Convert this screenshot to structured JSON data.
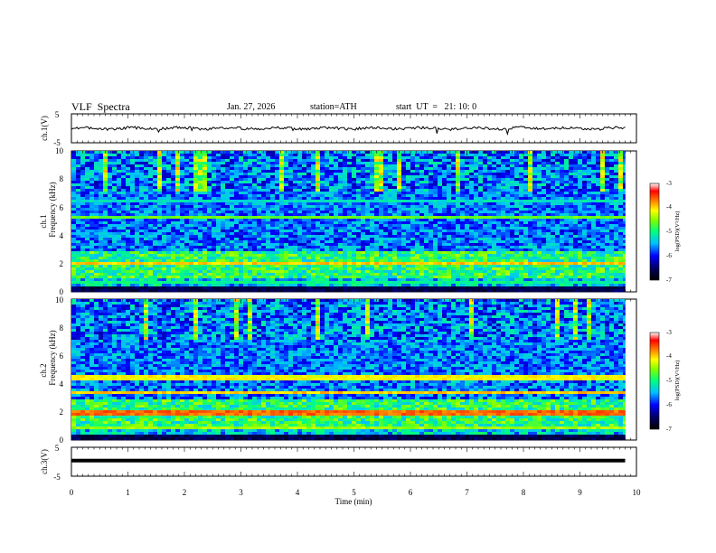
{
  "header": {
    "title": "VLF  Spectra",
    "date": "Jan. 27, 2026",
    "station": "station=ATH",
    "start_ut": "start  UT  =   21: 10: 0"
  },
  "chart_data": [
    {
      "type": "line",
      "panel": "ch1-waveform",
      "ylabel": "ch.1(V)",
      "ylim": [
        -5,
        5
      ],
      "ytick_labels": [
        "5",
        "-5"
      ],
      "x_range_min": [
        0,
        9.8
      ],
      "baseline_value": 0,
      "grid": false
    },
    {
      "type": "heatmap",
      "panel": "ch1-spectrogram",
      "ylabel": "ch.1\nFrequency  (kHz)",
      "ylabel_lines": [
        "ch.1",
        "Frequency  (kHz)"
      ],
      "ylim": [
        0,
        10
      ],
      "ytick_labels": [
        "0",
        "2",
        "4",
        "6",
        "8",
        "10"
      ],
      "x_range_min": [
        0,
        9.8
      ],
      "colorbar": {
        "label": "log(PSD)(V²/Hz)",
        "range": [
          -7,
          -3
        ],
        "tick_labels": [
          "-3",
          "-4",
          "-5",
          "-6",
          "-7"
        ]
      }
    },
    {
      "type": "heatmap",
      "panel": "ch2-spectrogram",
      "ylabel": "ch.2\nFrequency  (kHz)",
      "ylabel_lines": [
        "ch.2",
        "Frequency  (kHz)"
      ],
      "ylim": [
        0,
        10
      ],
      "ytick_labels": [
        "0",
        "2",
        "4",
        "6",
        "8",
        "10"
      ],
      "x_range_min": [
        0,
        9.8
      ],
      "colorbar": {
        "label": "log(PSD)(V²/Hz)",
        "range": [
          -7,
          -3
        ],
        "tick_labels": [
          "-3",
          "-4",
          "-5",
          "-6",
          "-7"
        ]
      }
    },
    {
      "type": "line",
      "panel": "ch3-waveform",
      "ylabel": "ch.3(V)",
      "ylim": [
        -5,
        5
      ],
      "ytick_labels": [
        "5",
        "-5"
      ],
      "x_range_min": [
        0,
        9.8
      ],
      "constant_value": 0.4,
      "grid": false
    }
  ],
  "x_axis": {
    "label": "Time  (min)",
    "range": [
      0,
      10
    ],
    "tick_labels": [
      "0",
      "1",
      "2",
      "3",
      "4",
      "5",
      "6",
      "7",
      "8",
      "9",
      "10"
    ]
  },
  "colors": {
    "background": "#ffffff",
    "colormap": [
      "#000000",
      "#000060",
      "#0000ff",
      "#00c0ff",
      "#00ff80",
      "#80ff00",
      "#ffff00",
      "#ff8000",
      "#ff0000",
      "#ffffff"
    ]
  }
}
